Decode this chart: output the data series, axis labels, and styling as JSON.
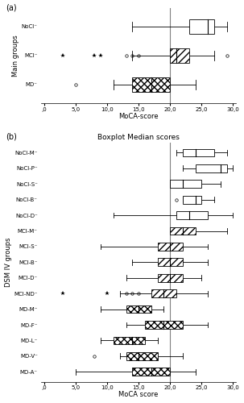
{
  "panel_a": {
    "label": "(a)",
    "ylabel": "Main groups",
    "xlabel": "MoCA-score",
    "xlim": [
      -0.5,
      30.5
    ],
    "xticks": [
      0,
      5,
      10,
      15,
      20,
      25,
      30
    ],
    "xticklabels": [
      ",0",
      "5,0",
      "10,0",
      "15,0",
      "20,0",
      "25,0",
      "30,0"
    ],
    "vline": 20,
    "groups": [
      "NoCI",
      "MCI",
      "MD"
    ],
    "boxes": [
      {
        "label": "NoCI",
        "q1": 23,
        "median": 26,
        "q3": 27,
        "whisker_low": 14,
        "whisker_high": 29,
        "outliers": [],
        "fliers_star": [],
        "hatch": ""
      },
      {
        "label": "MCI",
        "q1": 20,
        "median": 21,
        "q3": 23,
        "whisker_low": 14,
        "whisker_high": 27,
        "outliers": [
          13,
          14,
          15,
          29
        ],
        "fliers_star": [
          3,
          8,
          9
        ],
        "hatch": "////"
      },
      {
        "label": "MD",
        "q1": 14,
        "median": 17,
        "q3": 20,
        "whisker_low": 11,
        "whisker_high": 24,
        "outliers": [
          5
        ],
        "fliers_star": [],
        "hatch": "xxxx"
      }
    ]
  },
  "panel_b": {
    "title": "Boxplot Median scores",
    "label": "(b)",
    "ylabel": "DSM IV groups",
    "xlabel": "MoCA score",
    "xlim": [
      -0.5,
      30.5
    ],
    "xticks": [
      0,
      5,
      10,
      15,
      20,
      25,
      30
    ],
    "xticklabels": [
      ",0",
      "5,0",
      "10,0",
      "15,0",
      "20,0",
      "25,0",
      "30,0"
    ],
    "vline": 20,
    "groups": [
      "NoCI-M",
      "NoCI-P",
      "NoCI-S",
      "NoCI-B",
      "NoCI-D",
      "MCI-M",
      "MCI-S",
      "MCI-B",
      "MCI-D",
      "MCI-ND",
      "MD-M",
      "MD-F",
      "MD-L",
      "MD-V",
      "MD-A"
    ],
    "boxes": [
      {
        "label": "NoCI-M",
        "q1": 22,
        "median": 24,
        "q3": 27,
        "whisker_low": 21,
        "whisker_high": 29,
        "outliers": [],
        "fliers_star": [],
        "hatch": ""
      },
      {
        "label": "NoCI-P",
        "q1": 24,
        "median": 28,
        "q3": 29,
        "whisker_low": 22,
        "whisker_high": 30,
        "outliers": [],
        "fliers_star": [],
        "hatch": ""
      },
      {
        "label": "NoCI-S",
        "q1": 20,
        "median": 22,
        "q3": 25,
        "whisker_low": 20,
        "whisker_high": 28,
        "outliers": [],
        "fliers_star": [],
        "hatch": ""
      },
      {
        "label": "NoCI-B",
        "q1": 22,
        "median": 24,
        "q3": 25,
        "whisker_low": 22,
        "whisker_high": 27,
        "outliers": [
          21
        ],
        "fliers_star": [],
        "hatch": ""
      },
      {
        "label": "NoCI-D",
        "q1": 21,
        "median": 23,
        "q3": 26,
        "whisker_low": 11,
        "whisker_high": 30,
        "outliers": [],
        "fliers_star": [],
        "hatch": ""
      },
      {
        "label": "MCI-M",
        "q1": 20,
        "median": 22,
        "q3": 24,
        "whisker_low": 21,
        "whisker_high": 29,
        "outliers": [],
        "fliers_star": [],
        "hatch": "////"
      },
      {
        "label": "MCI-S",
        "q1": 18,
        "median": 20,
        "q3": 22,
        "whisker_low": 9,
        "whisker_high": 26,
        "outliers": [],
        "fliers_star": [],
        "hatch": "////"
      },
      {
        "label": "MCI-B",
        "q1": 18,
        "median": 20,
        "q3": 22,
        "whisker_low": 14,
        "whisker_high": 26,
        "outliers": [],
        "fliers_star": [],
        "hatch": "////"
      },
      {
        "label": "MCI-D",
        "q1": 18,
        "median": 20,
        "q3": 22,
        "whisker_low": 13,
        "whisker_high": 25,
        "outliers": [],
        "fliers_star": [],
        "hatch": "////"
      },
      {
        "label": "MCI-ND",
        "q1": 17,
        "median": 19,
        "q3": 21,
        "whisker_low": 12,
        "whisker_high": 26,
        "outliers": [
          13,
          14,
          15
        ],
        "fliers_star": [
          3,
          10
        ],
        "hatch": "////"
      },
      {
        "label": "MD-M",
        "q1": 13,
        "median": 15,
        "q3": 17,
        "whisker_low": 9,
        "whisker_high": 19,
        "outliers": [],
        "fliers_star": [],
        "hatch": "xxxx"
      },
      {
        "label": "MD-F",
        "q1": 16,
        "median": 19,
        "q3": 22,
        "whisker_low": 13,
        "whisker_high": 26,
        "outliers": [],
        "fliers_star": [],
        "hatch": "xxxx"
      },
      {
        "label": "MD-L",
        "q1": 11,
        "median": 14,
        "q3": 16,
        "whisker_low": 9,
        "whisker_high": 18,
        "outliers": [],
        "fliers_star": [],
        "hatch": "xxxx"
      },
      {
        "label": "MD-V",
        "q1": 13,
        "median": 15,
        "q3": 18,
        "whisker_low": 12,
        "whisker_high": 22,
        "outliers": [
          8
        ],
        "fliers_star": [],
        "hatch": "xxxx"
      },
      {
        "label": "MD-A",
        "q1": 14,
        "median": 17,
        "q3": 20,
        "whisker_low": 5,
        "whisker_high": 24,
        "outliers": [],
        "fliers_star": [],
        "hatch": "xxxx"
      }
    ]
  }
}
